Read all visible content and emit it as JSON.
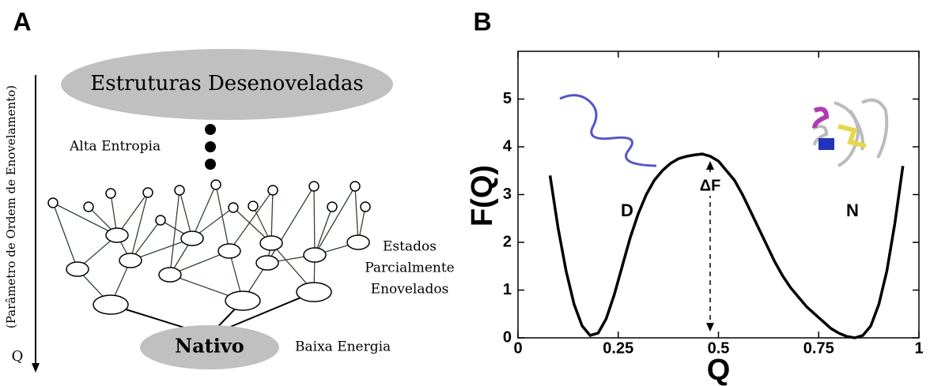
{
  "panel_a": {
    "label": "A",
    "top_state": "Estruturas Desenoveladas",
    "entropy": "Alta Entropia",
    "partial_states": [
      "Estados",
      "Parcialmente",
      "Enovelados"
    ],
    "native": "Nativo",
    "energy": "Baixa Energia",
    "axis_q": "Q",
    "axis_label": "(Parâmetro de Ordem de Enovelamento)"
  },
  "chart_data": {
    "type": "line",
    "panel_label": "B",
    "x_label": "Q",
    "y_label": "F(Q)",
    "x": [
      0.08,
      0.1,
      0.12,
      0.14,
      0.16,
      0.18,
      0.2,
      0.22,
      0.24,
      0.26,
      0.28,
      0.3,
      0.32,
      0.34,
      0.36,
      0.38,
      0.4,
      0.42,
      0.44,
      0.46,
      0.48,
      0.5,
      0.52,
      0.54,
      0.56,
      0.58,
      0.6,
      0.62,
      0.64,
      0.66,
      0.68,
      0.7,
      0.72,
      0.74,
      0.76,
      0.78,
      0.8,
      0.82,
      0.84,
      0.86,
      0.88,
      0.9,
      0.92,
      0.94,
      0.96
    ],
    "values": [
      3.4,
      2.3,
      1.4,
      0.7,
      0.25,
      0.05,
      0.1,
      0.4,
      0.9,
      1.5,
      2.1,
      2.6,
      3.0,
      3.3,
      3.5,
      3.65,
      3.75,
      3.8,
      3.83,
      3.85,
      3.8,
      3.7,
      3.5,
      3.3,
      3.0,
      2.65,
      2.3,
      1.95,
      1.6,
      1.3,
      1.05,
      0.85,
      0.65,
      0.5,
      0.35,
      0.2,
      0.1,
      0.03,
      0.0,
      0.05,
      0.25,
      0.7,
      1.4,
      2.4,
      3.6
    ],
    "color": "#000000",
    "xlim": [
      0,
      1
    ],
    "xticks": [
      0,
      0.25,
      0.5,
      0.75,
      1
    ],
    "ylim": [
      0,
      6
    ],
    "yticks": [
      0,
      1,
      2,
      3,
      4,
      5
    ],
    "annotations": [
      "D",
      "N",
      "ΔF"
    ]
  }
}
